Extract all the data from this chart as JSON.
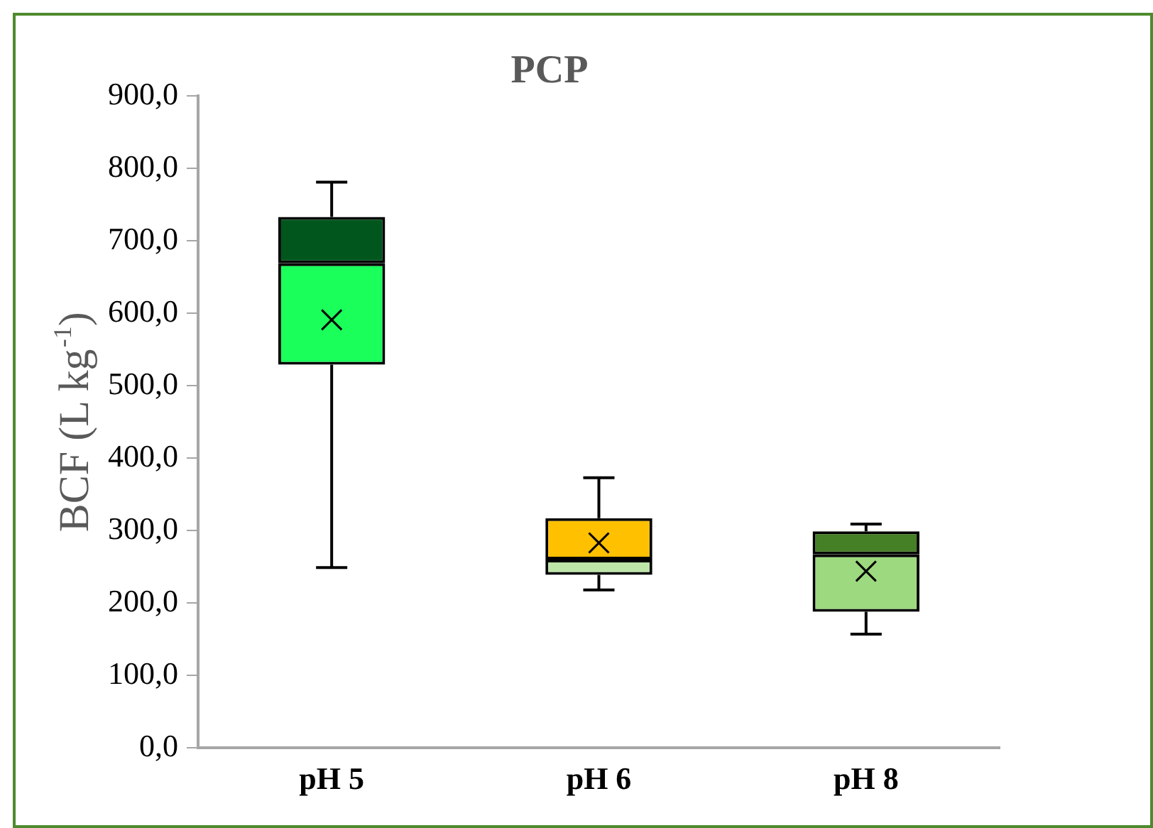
{
  "chart_data": {
    "type": "box",
    "title": "PCP",
    "ylabel": "BCF (L kg$^{-1}$)",
    "categories": [
      "pH 5",
      "pH 6",
      "pH 8"
    ],
    "boxes": [
      {
        "low": 249,
        "q1": 529,
        "median": 669,
        "q3": 733,
        "high": 781,
        "mean": 591
      },
      {
        "low": 218,
        "q1": 239,
        "median": 260,
        "q3": 317,
        "high": 373,
        "mean": 283
      },
      {
        "low": 157,
        "q1": 188,
        "median": 267,
        "q3": 299,
        "high": 309,
        "mean": 244
      }
    ],
    "colors": [
      [
        "#1aff5a",
        "#00561c"
      ],
      [
        "#bde5a8",
        "#ffc000"
      ],
      [
        "#9dd97f",
        "#457f26"
      ]
    ],
    "ylim": [
      0,
      900
    ],
    "yticks": [
      {
        "value": 0,
        "label": "0,0"
      },
      {
        "value": 100,
        "label": "100,0"
      },
      {
        "value": 200,
        "label": "200,0"
      },
      {
        "value": 300,
        "label": "300,0"
      },
      {
        "value": 400,
        "label": "400,0"
      },
      {
        "value": 500,
        "label": "500,0"
      },
      {
        "value": 600,
        "label": "600,0"
      },
      {
        "value": 700,
        "label": "700,0"
      },
      {
        "value": 800,
        "label": "800,0"
      },
      {
        "value": 900,
        "label": "900,0"
      }
    ],
    "grid": false,
    "legend": false,
    "marker": "cross"
  }
}
